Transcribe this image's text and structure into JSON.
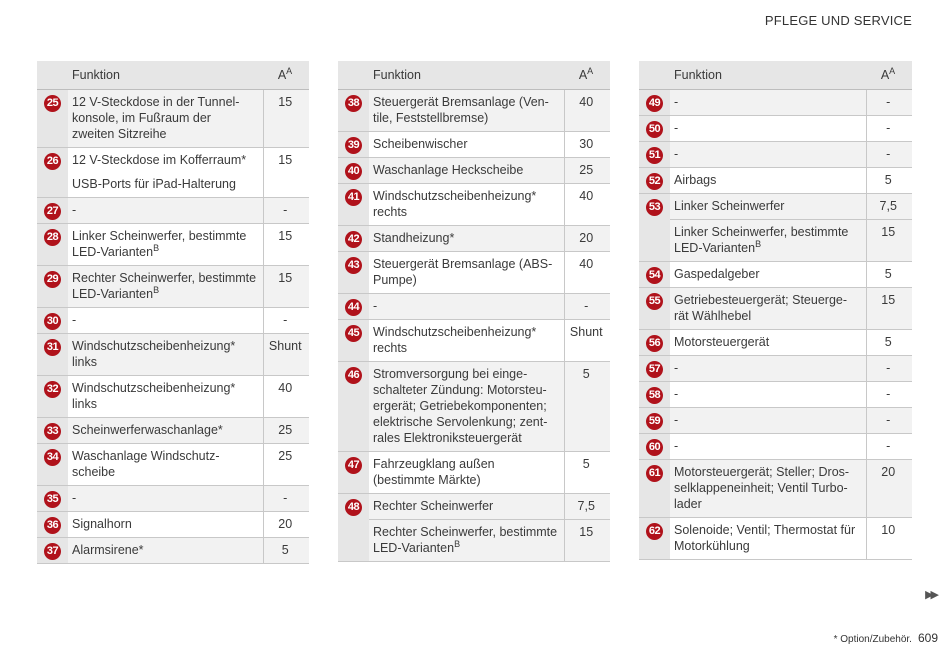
{
  "header": {
    "section_title": "PFLEGE UND SERVICE"
  },
  "table_headers": {
    "function": "Funktion",
    "amp": "A",
    "amp_sup": "A"
  },
  "columns": [
    {
      "rows": [
        {
          "num": "25",
          "fn": "12 V-Steckdose in der Tunnel-konsole, im Fußraum der zweiten Sitzreihe",
          "amp": "15"
        },
        {
          "num": "26",
          "fn": "12 V-Steckdose im Kofferraum*",
          "fn2": "USB-Ports für iPad-Halterung",
          "amp": "15"
        },
        {
          "num": "27",
          "fn": "-",
          "amp": "-"
        },
        {
          "num": "28",
          "fn": "Linker Scheinwerfer, bestimmte LED-Varianten",
          "fn_sup": "B",
          "amp": "15"
        },
        {
          "num": "29",
          "fn": "Rechter Scheinwerfer, bestimmte LED-Varianten",
          "fn_sup": "B",
          "amp": "15"
        },
        {
          "num": "30",
          "fn": "-",
          "amp": "-"
        },
        {
          "num": "31",
          "fn": "Windschutzscheibenheizung* links",
          "amp": "Shunt"
        },
        {
          "num": "32",
          "fn": "Windschutzscheibenheizung* links",
          "amp": "40"
        },
        {
          "num": "33",
          "fn": "Scheinwerferwaschanlage*",
          "amp": "25"
        },
        {
          "num": "34",
          "fn": "Waschanlage Windschutz-scheibe",
          "amp": "25"
        },
        {
          "num": "35",
          "fn": "-",
          "amp": "-"
        },
        {
          "num": "36",
          "fn": "Signalhorn",
          "amp": "20"
        },
        {
          "num": "37",
          "fn": "Alarmsirene*",
          "amp": "5"
        }
      ]
    },
    {
      "rows": [
        {
          "num": "38",
          "fn": "Steuergerät Bremsanlage (Ven-tile, Feststellbremse)",
          "amp": "40"
        },
        {
          "num": "39",
          "fn": "Scheibenwischer",
          "amp": "30"
        },
        {
          "num": "40",
          "fn": "Waschanlage Heckscheibe",
          "amp": "25"
        },
        {
          "num": "41",
          "fn": "Windschutzscheibenheizung* rechts",
          "amp": "40"
        },
        {
          "num": "42",
          "fn": "Standheizung*",
          "amp": "20"
        },
        {
          "num": "43",
          "fn": "Steuergerät Bremsanlage (ABS-Pumpe)",
          "amp": "40"
        },
        {
          "num": "44",
          "fn": "-",
          "amp": "-"
        },
        {
          "num": "45",
          "fn": "Windschutzscheibenheizung* rechts",
          "amp": "Shunt"
        },
        {
          "num": "46",
          "fn": "Stromversorgung bei einge-schalteter Zündung: Motorsteu-ergerät; Getriebekomponenten; elektrische Servolenkung; zent-rales Elektroniksteuergerät",
          "amp": "5"
        },
        {
          "num": "47",
          "fn": "Fahrzeugklang außen (bestimmte Märkte)",
          "amp": "5"
        },
        {
          "num": "48",
          "fn": "Rechter Scheinwerfer",
          "amp": "7,5"
        },
        {
          "num": "",
          "fn": "Rechter Scheinwerfer, bestimmte LED-Varianten",
          "fn_sup": "B",
          "amp": "15"
        }
      ]
    },
    {
      "rows": [
        {
          "num": "49",
          "fn": "-",
          "amp": "-"
        },
        {
          "num": "50",
          "fn": "-",
          "amp": "-"
        },
        {
          "num": "51",
          "fn": "-",
          "amp": "-"
        },
        {
          "num": "52",
          "fn": "Airbags",
          "amp": "5"
        },
        {
          "num": "53",
          "fn": "Linker Scheinwerfer",
          "amp": "7,5"
        },
        {
          "num": "",
          "fn": "Linker Scheinwerfer, bestimmte LED-Varianten",
          "fn_sup": "B",
          "amp": "15"
        },
        {
          "num": "54",
          "fn": "Gaspedalgeber",
          "amp": "5"
        },
        {
          "num": "55",
          "fn": "Getriebesteuergerät; Steuerge-rät Wählhebel",
          "amp": "15"
        },
        {
          "num": "56",
          "fn": "Motorsteuergerät",
          "amp": "5"
        },
        {
          "num": "57",
          "fn": "-",
          "amp": "-"
        },
        {
          "num": "58",
          "fn": "-",
          "amp": "-"
        },
        {
          "num": "59",
          "fn": "-",
          "amp": "-"
        },
        {
          "num": "60",
          "fn": "-",
          "amp": "-"
        },
        {
          "num": "61",
          "fn": "Motorsteuergerät; Steller; Dros-selklappeneinheit; Ventil Turbo-lader",
          "amp": "20"
        },
        {
          "num": "62",
          "fn": "Solenoide; Ventil; Thermostat für Motorkühlung",
          "amp": "10"
        }
      ]
    }
  ],
  "footer": {
    "note": "* Option/Zubehör.",
    "page_number": "609",
    "next_icon": "double-triangle-right-icon"
  },
  "colors": {
    "badge": "#b0121b",
    "header_bg": "#e6e6e6",
    "row_alt_bg": "#f2f2f2"
  }
}
